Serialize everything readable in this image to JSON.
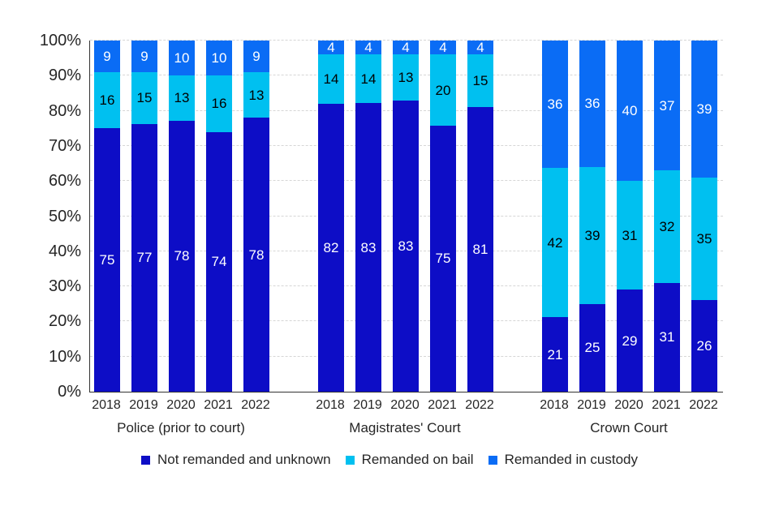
{
  "chart_data": {
    "type": "bar",
    "stacked": true,
    "orientation": "vertical",
    "value_unit": "percent",
    "ylim": [
      0,
      100
    ],
    "ytick_labels": [
      "0%",
      "10%",
      "20%",
      "30%",
      "40%",
      "50%",
      "60%",
      "70%",
      "80%",
      "90%",
      "100%"
    ],
    "grid": {
      "horizontal": true,
      "style": "dashed",
      "color": "#d6d6d6"
    },
    "legend_position": "bottom",
    "series": [
      {
        "name": "Not remanded and unknown",
        "color": "#0d0dc6",
        "label_color": "#ffffff"
      },
      {
        "name": "Remanded on bail",
        "color": "#00c0f0",
        "label_color": "#000000"
      },
      {
        "name": "Remanded in custody",
        "color": "#0a6cf5",
        "label_color": "#ffffff"
      }
    ],
    "groups": [
      {
        "label": "Police (prior to court)",
        "categories": [
          "2018",
          "2019",
          "2020",
          "2021",
          "2022"
        ],
        "values": {
          "Not remanded and unknown": [
            75,
            77,
            78,
            74,
            78
          ],
          "Remanded on bail": [
            16,
            15,
            13,
            16,
            13
          ],
          "Remanded in custody": [
            9,
            9,
            10,
            10,
            9
          ]
        }
      },
      {
        "label": "Magistrates' Court",
        "categories": [
          "2018",
          "2019",
          "2020",
          "2021",
          "2022"
        ],
        "values": {
          "Not remanded and unknown": [
            82,
            83,
            83,
            75,
            81
          ],
          "Remanded on bail": [
            14,
            14,
            13,
            20,
            15
          ],
          "Remanded in custody": [
            4,
            4,
            4,
            4,
            4
          ]
        }
      },
      {
        "label": "Crown Court",
        "categories": [
          "2018",
          "2019",
          "2020",
          "2021",
          "2022"
        ],
        "values": {
          "Not remanded and unknown": [
            21,
            25,
            29,
            31,
            26
          ],
          "Remanded on bail": [
            42,
            39,
            31,
            32,
            35
          ],
          "Remanded in custody": [
            36,
            36,
            40,
            37,
            39
          ]
        }
      }
    ]
  }
}
